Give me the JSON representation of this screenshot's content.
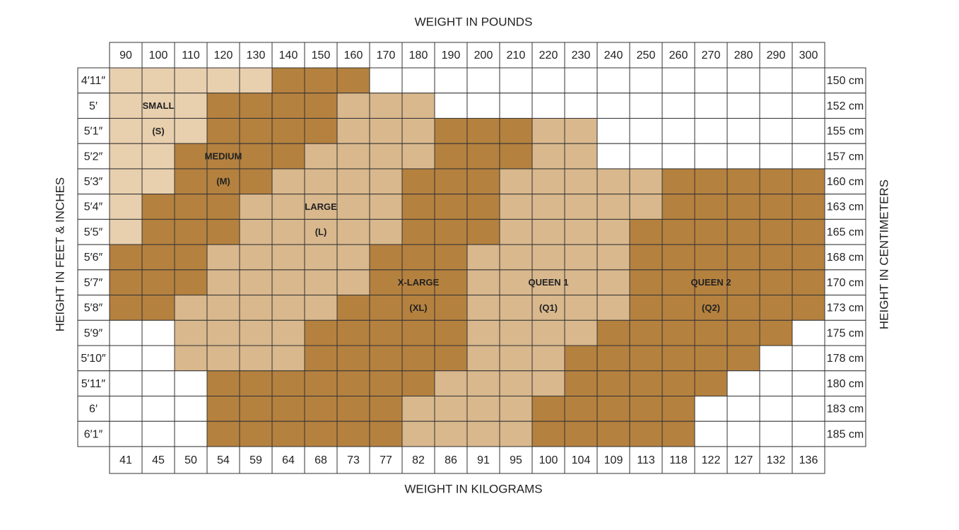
{
  "titles": {
    "top": "WEIGHT IN POUNDS",
    "bottom": "WEIGHT IN KILOGRAMS",
    "left": "HEIGHT IN FEET & INCHES",
    "right": "HEIGHT IN CENTIMETERS"
  },
  "pounds": [
    "90",
    "100",
    "110",
    "120",
    "130",
    "140",
    "150",
    "160",
    "170",
    "180",
    "190",
    "200",
    "210",
    "220",
    "230",
    "240",
    "250",
    "260",
    "270",
    "280",
    "290",
    "300"
  ],
  "kilograms": [
    "41",
    "45",
    "50",
    "54",
    "59",
    "64",
    "68",
    "73",
    "77",
    "82",
    "86",
    "91",
    "95",
    "100",
    "104",
    "109",
    "113",
    "118",
    "122",
    "127",
    "132",
    "136"
  ],
  "rows": [
    {
      "feet": "4′11″",
      "cm": "150 cm",
      "fills": [
        "#e8cfae",
        "#e8cfae",
        "#e8cfae",
        "#e8cfae",
        "#e8cfae",
        "#b5813f",
        "#b5813f",
        "#b5813f",
        "#ffffff",
        "#ffffff",
        "#ffffff",
        "#ffffff",
        "#ffffff",
        "#ffffff",
        "#ffffff",
        "#ffffff",
        "#ffffff",
        "#ffffff",
        "#ffffff",
        "#ffffff",
        "#ffffff",
        "#ffffff"
      ]
    },
    {
      "feet": "5′",
      "cm": "152 cm",
      "fills": [
        "#e8cfae",
        "#e8cfae",
        "#e8cfae",
        "#b5813f",
        "#b5813f",
        "#b5813f",
        "#b5813f",
        "#d9b88d",
        "#d9b88d",
        "#d9b88d",
        "#ffffff",
        "#ffffff",
        "#ffffff",
        "#ffffff",
        "#ffffff",
        "#ffffff",
        "#ffffff",
        "#ffffff",
        "#ffffff",
        "#ffffff",
        "#ffffff",
        "#ffffff"
      ]
    },
    {
      "feet": "5′1″",
      "cm": "155 cm",
      "fills": [
        "#e8cfae",
        "#e8cfae",
        "#e8cfae",
        "#b5813f",
        "#b5813f",
        "#b5813f",
        "#b5813f",
        "#d9b88d",
        "#d9b88d",
        "#d9b88d",
        "#b5813f",
        "#b5813f",
        "#b5813f",
        "#d9b88d",
        "#d9b88d",
        "#ffffff",
        "#ffffff",
        "#ffffff",
        "#ffffff",
        "#ffffff",
        "#ffffff",
        "#ffffff"
      ]
    },
    {
      "feet": "5′2″",
      "cm": "157 cm",
      "fills": [
        "#e8cfae",
        "#e8cfae",
        "#b5813f",
        "#b5813f",
        "#b5813f",
        "#b5813f",
        "#d9b88d",
        "#d9b88d",
        "#d9b88d",
        "#d9b88d",
        "#b5813f",
        "#b5813f",
        "#b5813f",
        "#d9b88d",
        "#d9b88d",
        "#ffffff",
        "#ffffff",
        "#ffffff",
        "#ffffff",
        "#ffffff",
        "#ffffff",
        "#ffffff"
      ]
    },
    {
      "feet": "5′3″",
      "cm": "160 cm",
      "fills": [
        "#e8cfae",
        "#e8cfae",
        "#b5813f",
        "#b5813f",
        "#b5813f",
        "#d9b88d",
        "#d9b88d",
        "#d9b88d",
        "#d9b88d",
        "#b5813f",
        "#b5813f",
        "#b5813f",
        "#d9b88d",
        "#d9b88d",
        "#d9b88d",
        "#d9b88d",
        "#d9b88d",
        "#b5813f",
        "#b5813f",
        "#b5813f",
        "#b5813f",
        "#b5813f"
      ]
    },
    {
      "feet": "5′4″",
      "cm": "163 cm",
      "fills": [
        "#e8cfae",
        "#b5813f",
        "#b5813f",
        "#b5813f",
        "#d9b88d",
        "#d9b88d",
        "#d9b88d",
        "#d9b88d",
        "#d9b88d",
        "#b5813f",
        "#b5813f",
        "#b5813f",
        "#d9b88d",
        "#d9b88d",
        "#d9b88d",
        "#d9b88d",
        "#d9b88d",
        "#b5813f",
        "#b5813f",
        "#b5813f",
        "#b5813f",
        "#b5813f"
      ]
    },
    {
      "feet": "5′5″",
      "cm": "165 cm",
      "fills": [
        "#e8cfae",
        "#b5813f",
        "#b5813f",
        "#b5813f",
        "#d9b88d",
        "#d9b88d",
        "#d9b88d",
        "#d9b88d",
        "#d9b88d",
        "#b5813f",
        "#b5813f",
        "#b5813f",
        "#d9b88d",
        "#d9b88d",
        "#d9b88d",
        "#d9b88d",
        "#b5813f",
        "#b5813f",
        "#b5813f",
        "#b5813f",
        "#b5813f",
        "#b5813f"
      ]
    },
    {
      "feet": "5′6″",
      "cm": "168 cm",
      "fills": [
        "#b5813f",
        "#b5813f",
        "#b5813f",
        "#d9b88d",
        "#d9b88d",
        "#d9b88d",
        "#d9b88d",
        "#d9b88d",
        "#b5813f",
        "#b5813f",
        "#b5813f",
        "#d9b88d",
        "#d9b88d",
        "#d9b88d",
        "#d9b88d",
        "#d9b88d",
        "#b5813f",
        "#b5813f",
        "#b5813f",
        "#b5813f",
        "#b5813f",
        "#b5813f"
      ]
    },
    {
      "feet": "5′7″",
      "cm": "170 cm",
      "fills": [
        "#b5813f",
        "#b5813f",
        "#b5813f",
        "#d9b88d",
        "#d9b88d",
        "#d9b88d",
        "#d9b88d",
        "#d9b88d",
        "#b5813f",
        "#b5813f",
        "#b5813f",
        "#d9b88d",
        "#d9b88d",
        "#d9b88d",
        "#d9b88d",
        "#d9b88d",
        "#b5813f",
        "#b5813f",
        "#b5813f",
        "#b5813f",
        "#b5813f",
        "#b5813f"
      ]
    },
    {
      "feet": "5′8″",
      "cm": "173 cm",
      "fills": [
        "#b5813f",
        "#b5813f",
        "#d9b88d",
        "#d9b88d",
        "#d9b88d",
        "#d9b88d",
        "#d9b88d",
        "#b5813f",
        "#b5813f",
        "#b5813f",
        "#b5813f",
        "#d9b88d",
        "#d9b88d",
        "#d9b88d",
        "#d9b88d",
        "#d9b88d",
        "#b5813f",
        "#b5813f",
        "#b5813f",
        "#b5813f",
        "#b5813f",
        "#b5813f"
      ]
    },
    {
      "feet": "5′9″",
      "cm": "175 cm",
      "fills": [
        "#ffffff",
        "#ffffff",
        "#d9b88d",
        "#d9b88d",
        "#d9b88d",
        "#d9b88d",
        "#b5813f",
        "#b5813f",
        "#b5813f",
        "#b5813f",
        "#b5813f",
        "#d9b88d",
        "#d9b88d",
        "#d9b88d",
        "#d9b88d",
        "#b5813f",
        "#b5813f",
        "#b5813f",
        "#b5813f",
        "#b5813f",
        "#b5813f",
        "#ffffff"
      ]
    },
    {
      "feet": "5′10″",
      "cm": "178 cm",
      "fills": [
        "#ffffff",
        "#ffffff",
        "#d9b88d",
        "#d9b88d",
        "#d9b88d",
        "#d9b88d",
        "#b5813f",
        "#b5813f",
        "#b5813f",
        "#b5813f",
        "#b5813f",
        "#d9b88d",
        "#d9b88d",
        "#d9b88d",
        "#b5813f",
        "#b5813f",
        "#b5813f",
        "#b5813f",
        "#b5813f",
        "#b5813f",
        "#ffffff",
        "#ffffff"
      ]
    },
    {
      "feet": "5′11″",
      "cm": "180 cm",
      "fills": [
        "#ffffff",
        "#ffffff",
        "#ffffff",
        "#b5813f",
        "#b5813f",
        "#b5813f",
        "#b5813f",
        "#b5813f",
        "#b5813f",
        "#b5813f",
        "#d9b88d",
        "#d9b88d",
        "#d9b88d",
        "#d9b88d",
        "#b5813f",
        "#b5813f",
        "#b5813f",
        "#b5813f",
        "#b5813f",
        "#ffffff",
        "#ffffff",
        "#ffffff"
      ]
    },
    {
      "feet": "6′",
      "cm": "183 cm",
      "fills": [
        "#ffffff",
        "#ffffff",
        "#ffffff",
        "#b5813f",
        "#b5813f",
        "#b5813f",
        "#b5813f",
        "#b5813f",
        "#b5813f",
        "#d9b88d",
        "#d9b88d",
        "#d9b88d",
        "#d9b88d",
        "#b5813f",
        "#b5813f",
        "#b5813f",
        "#b5813f",
        "#b5813f",
        "#ffffff",
        "#ffffff",
        "#ffffff",
        "#ffffff"
      ]
    },
    {
      "feet": "6′1″",
      "cm": "185 cm",
      "fills": [
        "#ffffff",
        "#ffffff",
        "#ffffff",
        "#b5813f",
        "#b5813f",
        "#b5813f",
        "#b5813f",
        "#b5813f",
        "#b5813f",
        "#d9b88d",
        "#d9b88d",
        "#d9b88d",
        "#d9b88d",
        "#b5813f",
        "#b5813f",
        "#b5813f",
        "#b5813f",
        "#b5813f",
        "#ffffff",
        "#ffffff",
        "#ffffff",
        "#ffffff"
      ]
    }
  ],
  "sizes": [
    {
      "name": "SMALL",
      "code": "(S)"
    },
    {
      "name": "MEDIUM",
      "code": "(M)"
    },
    {
      "name": "LARGE",
      "code": "(L)"
    },
    {
      "name": "X-LARGE",
      "code": "(XL)"
    },
    {
      "name": "QUEEN 1",
      "code": "(Q1)"
    },
    {
      "name": "QUEEN 2",
      "code": "(Q2)"
    }
  ]
}
